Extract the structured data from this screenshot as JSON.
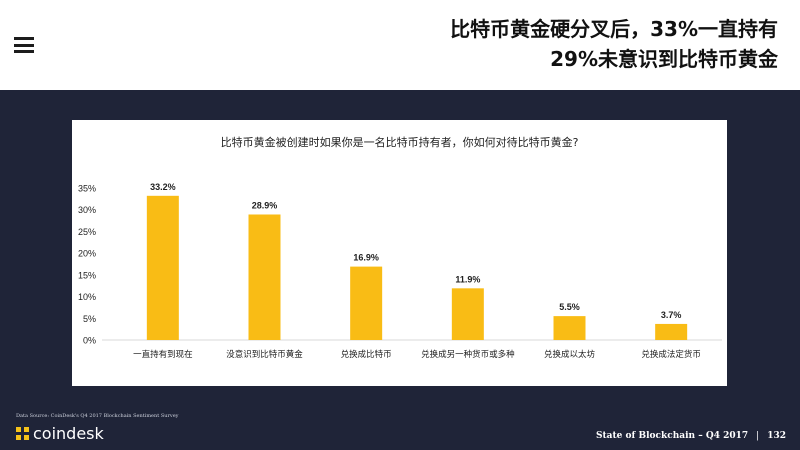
{
  "header": {
    "title_line1": "比特币黄金硬分叉后，33%一直持有",
    "title_line2": "29%未意识到比特币黄金"
  },
  "chart_data": {
    "type": "bar",
    "title": "比特币黄金被创建时如果你是一名比特币持有者，你如何对待比特币黄金?",
    "categories": [
      "一直持有到现在",
      "没意识到比特币黄金",
      "兑换成比特币",
      "兑换成另一种货币或多种",
      "兑换成以太坊",
      "兑换成法定货币"
    ],
    "values": [
      33.2,
      28.9,
      16.9,
      11.9,
      5.5,
      3.7
    ],
    "data_labels": [
      "33.2%",
      "28.9%",
      "16.9%",
      "11.9%",
      "5.5%",
      "3.7%"
    ],
    "yticks": [
      "0%",
      "5%",
      "10%",
      "15%",
      "20%",
      "25%",
      "30%",
      "35%"
    ],
    "ylim": [
      0,
      35
    ],
    "bar_color": "#f9bc15",
    "grid": false,
    "legend": "none"
  },
  "footer": {
    "source": "Data Source: CoinDesk's Q4 2017 Blockchain Sentiment Survey",
    "brand": "coindesk",
    "report": "State of Blockchain – Q4 2017",
    "separator": "|",
    "page": "132"
  }
}
